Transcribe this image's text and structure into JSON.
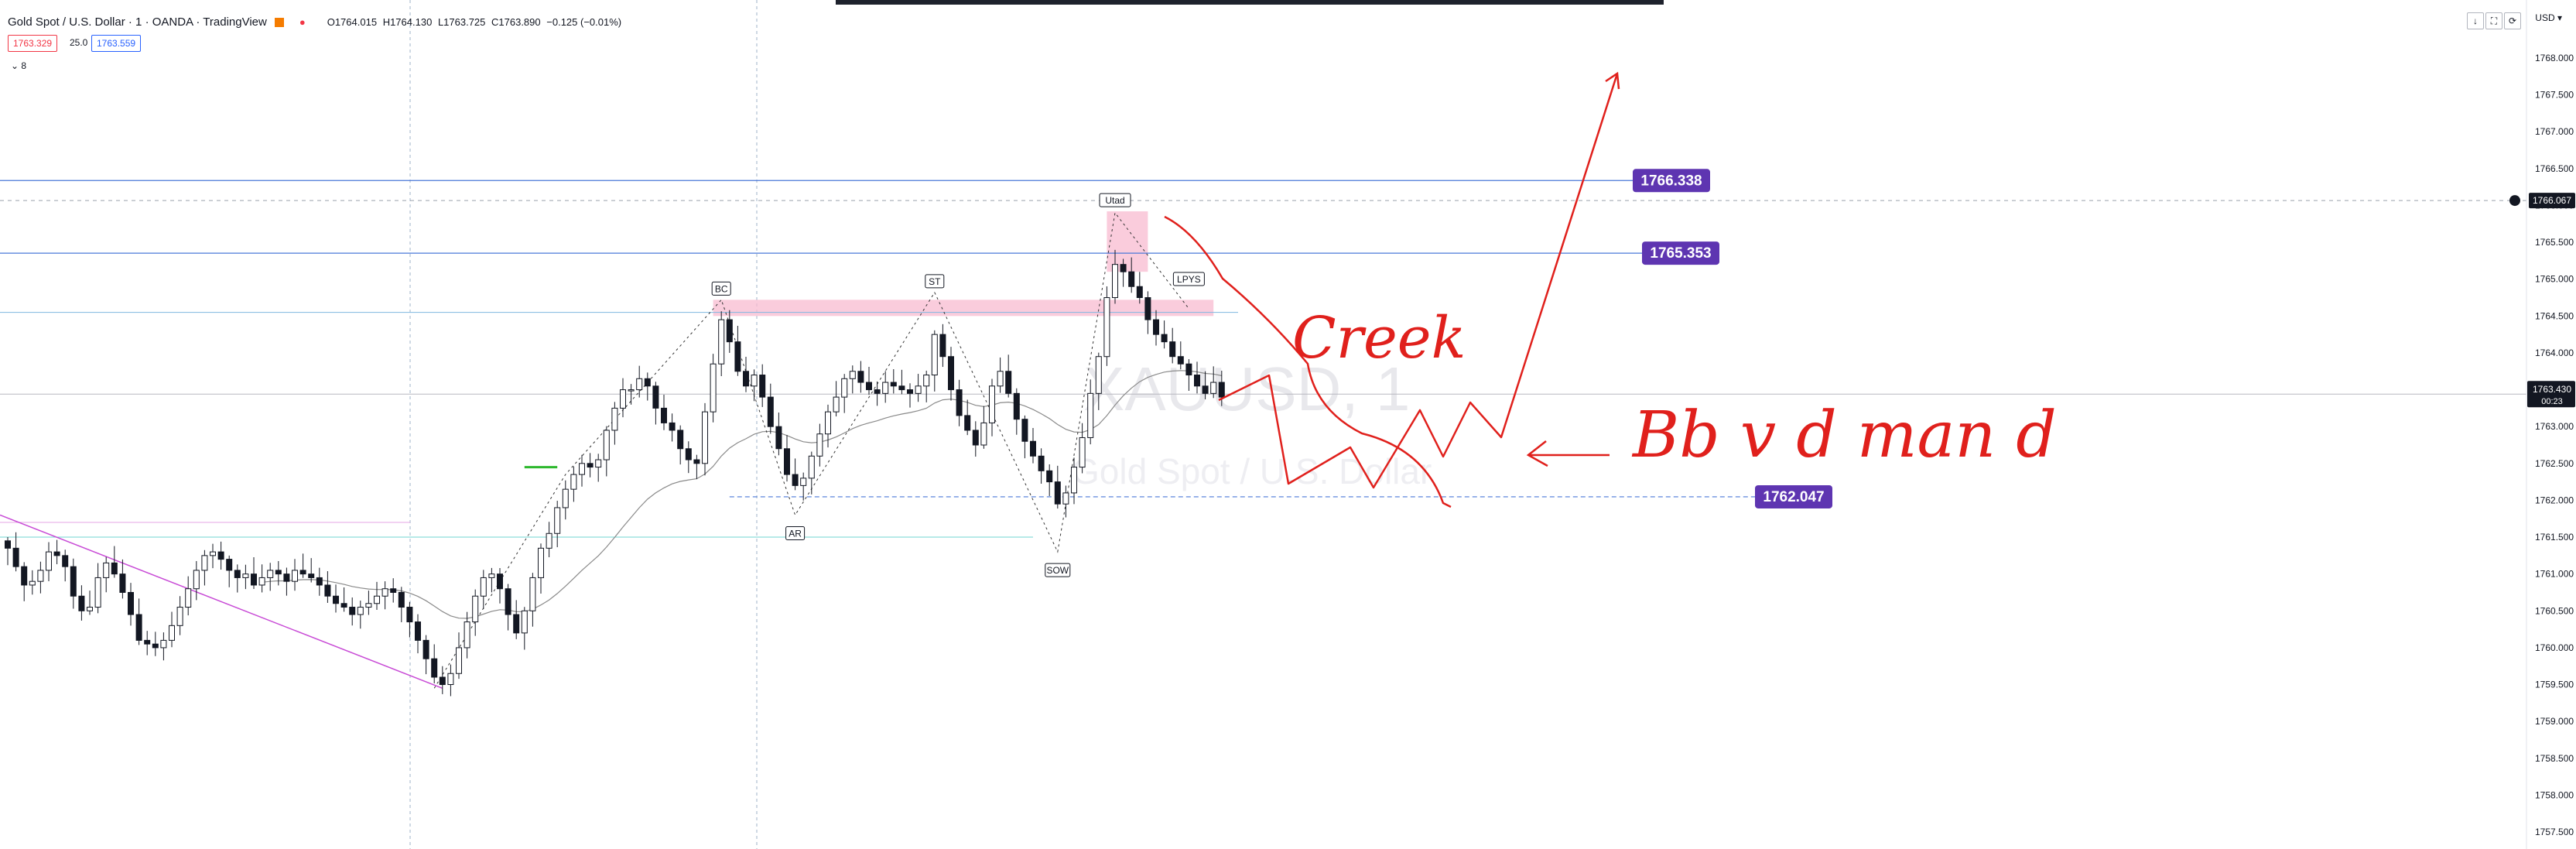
{
  "header": {
    "symbol_title": "Gold Spot / U.S. Dollar · 1 · OANDA · TradingView",
    "ohlc": {
      "open": "O1764.015",
      "high": "H1764.130",
      "low": "L1763.725",
      "close": "C1763.890",
      "change": "−0.125 (−0.01%)"
    },
    "sell_price": "1763.329",
    "spread": "25.0",
    "buy_price": "1763.559",
    "indicator_count": "8",
    "currency": "USD",
    "window_controls": [
      "↓",
      "⛶",
      "⟳"
    ]
  },
  "colors": {
    "bull": "#ffffff",
    "bear": "#131722",
    "accent_purple": "#5e35b1",
    "drawing_red": "#e0201c",
    "level_blue": "#4a90e2",
    "zone_pink": "#f8bbd0"
  },
  "chart_data": {
    "type": "candlestick",
    "symbol": "XAUUSD",
    "y_ticks": [
      "1768.000",
      "1767.500",
      "1767.000",
      "1766.500",
      "1766.000",
      "1765.500",
      "1765.000",
      "1764.500",
      "1764.000",
      "1763.500",
      "1763.000",
      "1762.500",
      "1762.000",
      "1761.500",
      "1761.000",
      "1760.500",
      "1760.000",
      "1759.500",
      "1759.000",
      "1758.500",
      "1758.000",
      "1757.500"
    ],
    "ylim": [
      1757.4,
      1768.1
    ],
    "current_price": "1763.430",
    "countdown": "00:23",
    "crosshair_price": "1766.067",
    "levels": [
      {
        "price": 1766.338,
        "label": "1766.338"
      },
      {
        "price": 1765.353,
        "label": "1765.353"
      },
      {
        "price": 1762.047,
        "label": "1762.047"
      }
    ],
    "wyckoff_labels": [
      {
        "text": "BC",
        "index": 87,
        "price": 1764.72
      },
      {
        "text": "AR",
        "index": 96,
        "price": 1761.8
      },
      {
        "text": "ST",
        "index": 113,
        "price": 1764.82
      },
      {
        "text": "SOW",
        "index": 128,
        "price": 1761.3
      },
      {
        "text": "Utad",
        "index": 135,
        "price": 1765.92
      },
      {
        "text": "LPYS",
        "index": 144,
        "price": 1764.85
      }
    ],
    "handwritten": [
      "Creek",
      "Bb v d man d"
    ],
    "watermark": [
      "XAUUSD, 1",
      "Gold Spot / U.S. Dollar"
    ],
    "close_path": [
      1761.35,
      1761.1,
      1760.85,
      1760.9,
      1761.05,
      1761.3,
      1761.25,
      1761.1,
      1760.7,
      1760.5,
      1760.55,
      1760.95,
      1761.15,
      1761.0,
      1760.75,
      1760.45,
      1760.1,
      1760.05,
      1760.0,
      1760.1,
      1760.3,
      1760.55,
      1760.8,
      1761.05,
      1761.25,
      1761.3,
      1761.2,
      1761.05,
      1760.95,
      1761.0,
      1760.85,
      1760.95,
      1761.05,
      1761.0,
      1760.9,
      1761.05,
      1761.0,
      1760.95,
      1760.85,
      1760.7,
      1760.6,
      1760.55,
      1760.45,
      1760.55,
      1760.6,
      1760.7,
      1760.8,
      1760.75,
      1760.55,
      1760.35,
      1760.1,
      1759.85,
      1759.6,
      1759.5,
      1759.65,
      1760.0,
      1760.35,
      1760.7,
      1760.95,
      1761.0,
      1760.8,
      1760.45,
      1760.2,
      1760.5,
      1760.95,
      1761.35,
      1761.55,
      1761.9,
      1762.15,
      1762.35,
      1762.5,
      1762.45,
      1762.55,
      1762.95,
      1763.25,
      1763.5,
      1763.5,
      1763.65,
      1763.55,
      1763.25,
      1763.05,
      1762.95,
      1762.7,
      1762.55,
      1762.5,
      1763.2,
      1763.85,
      1764.45,
      1764.15,
      1763.75,
      1763.55,
      1763.7,
      1763.4,
      1763.0,
      1762.7,
      1762.35,
      1762.2,
      1762.3,
      1762.6,
      1762.9,
      1763.2,
      1763.4,
      1763.65,
      1763.75,
      1763.6,
      1763.5,
      1763.45,
      1763.6,
      1763.55,
      1763.5,
      1763.45,
      1763.55,
      1763.7,
      1764.25,
      1763.95,
      1763.5,
      1763.15,
      1762.95,
      1762.75,
      1763.05,
      1763.55,
      1763.75,
      1763.45,
      1763.1,
      1762.8,
      1762.6,
      1762.4,
      1762.25,
      1761.95,
      1762.1,
      1762.45,
      1762.85,
      1763.45,
      1763.95,
      1764.75,
      1765.2,
      1765.1,
      1764.9,
      1764.75,
      1764.45,
      1764.25,
      1764.15,
      1763.95,
      1763.85,
      1763.7,
      1763.55,
      1763.45,
      1763.6,
      1763.4
    ]
  }
}
